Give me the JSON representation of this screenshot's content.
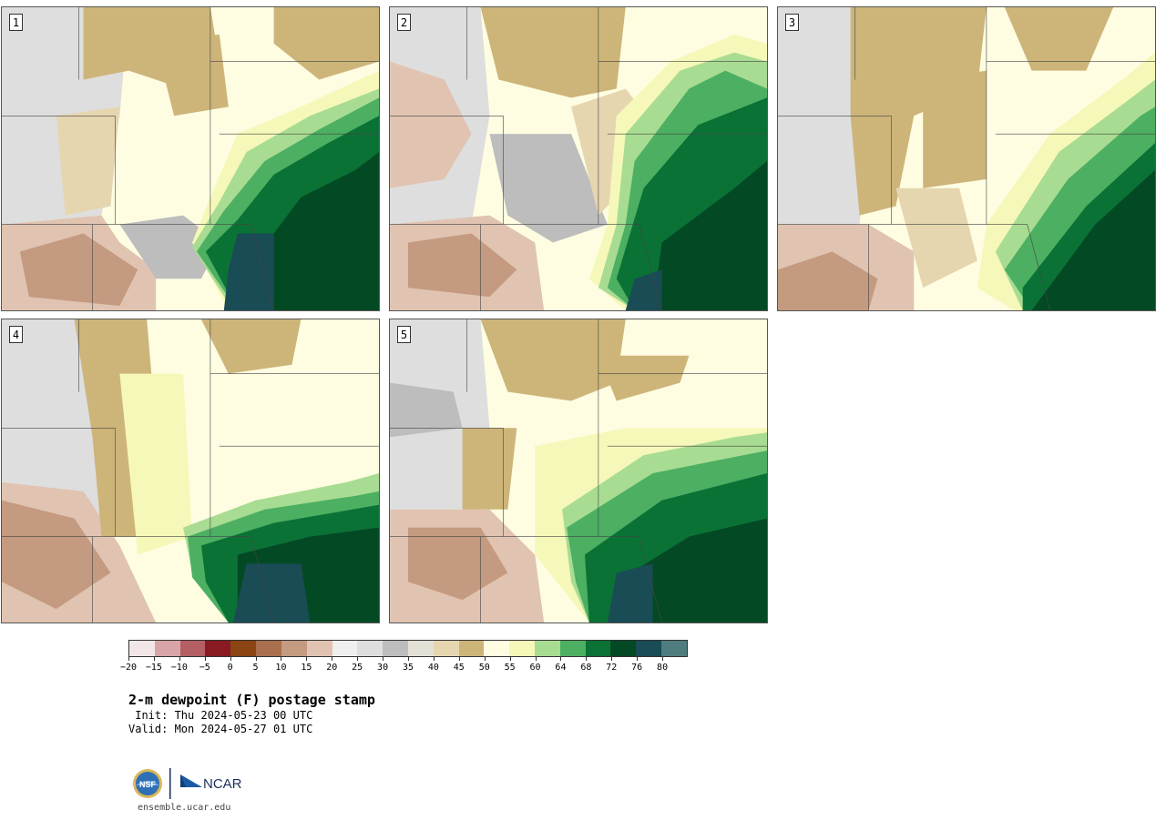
{
  "title": "2-m dewpoint (F) postage stamp",
  "init": " Init: Thu 2024-05-23 00 UTC",
  "valid": "Valid: Mon 2024-05-27 01 UTC",
  "site": "ensemble.ucar.edu",
  "panels": [
    {
      "label": "1"
    },
    {
      "label": "2"
    },
    {
      "label": "3"
    },
    {
      "label": "4"
    },
    {
      "label": "5"
    }
  ],
  "colorbar": {
    "ticks": [
      "−20",
      "−15",
      "−10",
      "−5",
      "0",
      "5",
      "10",
      "15",
      "20",
      "25",
      "30",
      "35",
      "40",
      "45",
      "50",
      "55",
      "60",
      "64",
      "68",
      "72",
      "76",
      "80"
    ],
    "colors": [
      "#f3e6e6",
      "#d9a4a7",
      "#b35f64",
      "#8a1a22",
      "#8b4513",
      "#a96f4e",
      "#c49a80",
      "#e0c4b1",
      "#efefef",
      "#dedede",
      "#bdbdbd",
      "#e3e1d6",
      "#e6d6b0",
      "#cdb57a",
      "#fefde2",
      "#f5f8b8",
      "#a8dc92",
      "#4caf62",
      "#0b7236",
      "#034a24",
      "#1a4c55",
      "#4f7d7f"
    ],
    "high_end_color": "#4f7d7f"
  },
  "logos": {
    "left": "NSF",
    "right": "NCAR"
  }
}
